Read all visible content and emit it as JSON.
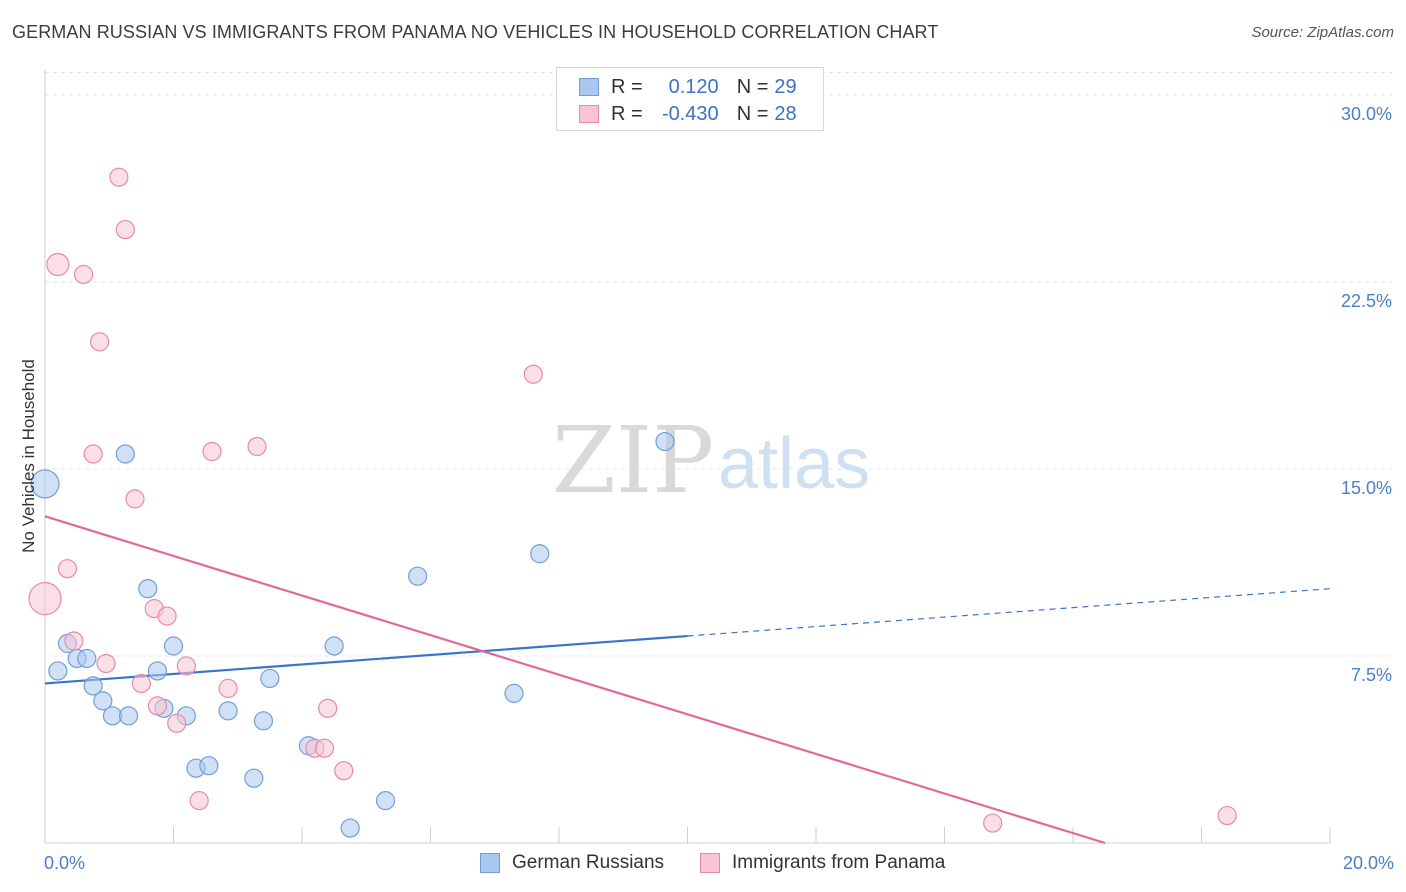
{
  "title": "GERMAN RUSSIAN VS IMMIGRANTS FROM PANAMA NO VEHICLES IN HOUSEHOLD CORRELATION CHART",
  "source": "Source: ZipAtlas.com",
  "watermark": {
    "zip": "ZIP",
    "atlas": "atlas"
  },
  "legend": {
    "rows": [
      {
        "r_label": "R =",
        "r_value": "0.120",
        "n_label": "N =",
        "n_value": "29",
        "color": "#a9c8ef",
        "border": "#6f9fd8"
      },
      {
        "r_label": "R =",
        "r_value": "-0.430",
        "n_label": "N =",
        "n_value": "28",
        "color": "#f7c5d3",
        "border": "#e88aa6"
      }
    ]
  },
  "bottom_legend": {
    "series_a": "German Russians",
    "series_b": "Immigrants from Panama"
  },
  "colors": {
    "blue_fill": "#a9c8ef",
    "blue_stroke": "#6f9fd8",
    "blue_line": "#3a74cc",
    "pink_fill": "#f7c5d3",
    "pink_stroke": "#e88aa6",
    "pink_line": "#e0699a",
    "tick_text": "#4a7fc9",
    "grid": "#e4e4e4"
  },
  "chart_data": {
    "type": "scatter",
    "title": "GERMAN RUSSIAN VS IMMIGRANTS FROM PANAMA NO VEHICLES IN HOUSEHOLD CORRELATION CHART",
    "xlabel": "",
    "ylabel": "No Vehicles in Household",
    "xlim": [
      0,
      20
    ],
    "ylim": [
      0,
      31
    ],
    "x_tick_labels": [
      "0.0%",
      "20.0%"
    ],
    "y_ticks": [
      7.5,
      15.0,
      22.5,
      30.0
    ],
    "y_tick_labels": [
      "7.5%",
      "15.0%",
      "22.5%",
      "30.0%"
    ],
    "grid": true,
    "legend_position": "top-center",
    "series": [
      {
        "name": "German Russians",
        "color": "#a9c8ef",
        "points": [
          {
            "x": 0.0,
            "y": 14.4,
            "s": 14
          },
          {
            "x": 0.2,
            "y": 6.9,
            "s": 9
          },
          {
            "x": 0.35,
            "y": 8.0,
            "s": 9
          },
          {
            "x": 0.5,
            "y": 7.4,
            "s": 9
          },
          {
            "x": 0.65,
            "y": 7.4,
            "s": 9
          },
          {
            "x": 0.75,
            "y": 6.3,
            "s": 9
          },
          {
            "x": 0.9,
            "y": 5.7,
            "s": 9
          },
          {
            "x": 1.05,
            "y": 5.1,
            "s": 9
          },
          {
            "x": 1.3,
            "y": 5.1,
            "s": 9
          },
          {
            "x": 1.25,
            "y": 15.6,
            "s": 9
          },
          {
            "x": 1.6,
            "y": 10.2,
            "s": 9
          },
          {
            "x": 1.75,
            "y": 6.9,
            "s": 9
          },
          {
            "x": 1.85,
            "y": 5.4,
            "s": 9
          },
          {
            "x": 2.0,
            "y": 7.9,
            "s": 9
          },
          {
            "x": 2.2,
            "y": 5.1,
            "s": 9
          },
          {
            "x": 2.35,
            "y": 3.0,
            "s": 9
          },
          {
            "x": 2.55,
            "y": 3.1,
            "s": 9
          },
          {
            "x": 2.85,
            "y": 5.3,
            "s": 9
          },
          {
            "x": 3.25,
            "y": 2.6,
            "s": 9
          },
          {
            "x": 3.4,
            "y": 4.9,
            "s": 9
          },
          {
            "x": 3.5,
            "y": 6.6,
            "s": 9
          },
          {
            "x": 4.1,
            "y": 3.9,
            "s": 9
          },
          {
            "x": 4.5,
            "y": 7.9,
            "s": 9
          },
          {
            "x": 4.75,
            "y": 0.6,
            "s": 9
          },
          {
            "x": 5.3,
            "y": 1.7,
            "s": 9
          },
          {
            "x": 5.8,
            "y": 10.7,
            "s": 9
          },
          {
            "x": 7.3,
            "y": 6.0,
            "s": 9
          },
          {
            "x": 7.7,
            "y": 11.6,
            "s": 9
          },
          {
            "x": 9.65,
            "y": 16.1,
            "s": 9
          }
        ],
        "trend": {
          "x": [
            0,
            10.0
          ],
          "y": [
            6.4,
            8.3
          ],
          "dashed_to": {
            "x": 20,
            "y": 10.2
          }
        }
      },
      {
        "name": "Immigrants from Panama",
        "color": "#f7c5d3",
        "points": [
          {
            "x": 0.0,
            "y": 9.8,
            "s": 16
          },
          {
            "x": 0.2,
            "y": 23.2,
            "s": 11
          },
          {
            "x": 0.35,
            "y": 11.0,
            "s": 9
          },
          {
            "x": 0.45,
            "y": 8.1,
            "s": 9
          },
          {
            "x": 0.6,
            "y": 22.8,
            "s": 9
          },
          {
            "x": 0.75,
            "y": 15.6,
            "s": 9
          },
          {
            "x": 0.85,
            "y": 20.1,
            "s": 9
          },
          {
            "x": 0.95,
            "y": 7.2,
            "s": 9
          },
          {
            "x": 1.15,
            "y": 26.7,
            "s": 9
          },
          {
            "x": 1.25,
            "y": 24.6,
            "s": 9
          },
          {
            "x": 1.4,
            "y": 13.8,
            "s": 9
          },
          {
            "x": 1.5,
            "y": 6.4,
            "s": 9
          },
          {
            "x": 1.7,
            "y": 9.4,
            "s": 9
          },
          {
            "x": 1.75,
            "y": 5.5,
            "s": 9
          },
          {
            "x": 1.9,
            "y": 9.1,
            "s": 9
          },
          {
            "x": 2.05,
            "y": 4.8,
            "s": 9
          },
          {
            "x": 2.2,
            "y": 7.1,
            "s": 9
          },
          {
            "x": 2.4,
            "y": 1.7,
            "s": 9
          },
          {
            "x": 2.6,
            "y": 15.7,
            "s": 9
          },
          {
            "x": 2.85,
            "y": 6.2,
            "s": 9
          },
          {
            "x": 3.3,
            "y": 15.9,
            "s": 9
          },
          {
            "x": 4.2,
            "y": 3.8,
            "s": 9
          },
          {
            "x": 4.35,
            "y": 3.8,
            "s": 9
          },
          {
            "x": 4.4,
            "y": 5.4,
            "s": 9
          },
          {
            "x": 4.65,
            "y": 2.9,
            "s": 9
          },
          {
            "x": 7.6,
            "y": 18.8,
            "s": 9
          },
          {
            "x": 14.75,
            "y": 0.8,
            "s": 9
          },
          {
            "x": 18.4,
            "y": 1.1,
            "s": 9
          }
        ],
        "trend": {
          "x": [
            0,
            16.5
          ],
          "y": [
            13.1,
            0.0
          ]
        }
      }
    ]
  }
}
